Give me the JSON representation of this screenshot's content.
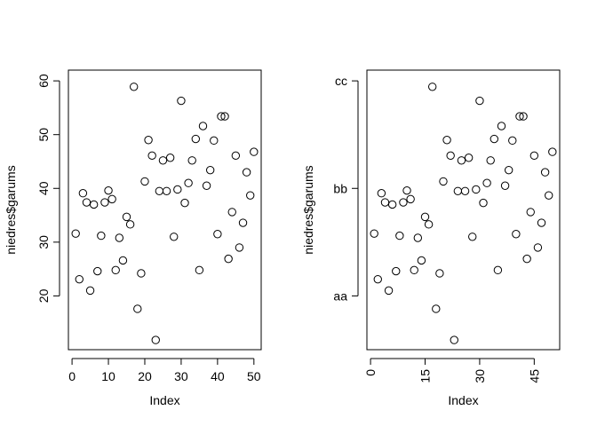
{
  "chart_data": [
    {
      "type": "scatter",
      "title": "",
      "xlabel": "Index",
      "ylabel": "niedres$garums",
      "xlim": [
        -1.0,
        52.0
      ],
      "ylim": [
        10.0,
        62.0
      ],
      "x_ticks": [
        0,
        10,
        20,
        30,
        40,
        50
      ],
      "x_tick_labels": [
        "0",
        "10",
        "20",
        "30",
        "40",
        "50"
      ],
      "y_ticks": [
        20,
        30,
        40,
        50,
        60
      ],
      "y_tick_labels": [
        "20",
        "30",
        "40",
        "50",
        "60"
      ],
      "grid": false,
      "legend": "none",
      "series": [
        {
          "x": [
            1,
            2,
            3,
            4,
            5,
            6,
            7,
            8,
            9,
            10,
            11,
            12,
            13,
            14,
            15,
            16,
            17,
            18,
            19,
            20,
            21,
            22,
            23,
            24,
            25,
            26,
            27,
            28,
            29,
            30,
            31,
            32,
            33,
            34,
            35,
            36,
            37,
            38,
            39,
            40,
            41,
            42,
            43,
            44,
            45,
            46,
            47,
            48,
            49,
            50
          ],
          "y": [
            31.6,
            23.1,
            39.1,
            37.4,
            21.0,
            37.0,
            24.6,
            31.2,
            37.4,
            39.6,
            38.0,
            24.8,
            30.8,
            26.6,
            34.7,
            33.3,
            58.9,
            17.6,
            24.2,
            41.3,
            49.0,
            46.1,
            11.8,
            39.5,
            45.2,
            39.5,
            45.7,
            31.0,
            39.8,
            56.3,
            37.3,
            41.0,
            45.2,
            49.2,
            24.8,
            51.6,
            40.5,
            43.4,
            48.9,
            31.5,
            53.4,
            53.4,
            26.9,
            35.6,
            46.1,
            29.0,
            33.6,
            43.0,
            38.7,
            46.8
          ]
        }
      ]
    },
    {
      "type": "scatter",
      "title": "",
      "xlabel": "Index",
      "ylabel": "niedres$garums",
      "xlim": [
        -1.0,
        52.0
      ],
      "ylim": [
        10.0,
        62.0
      ],
      "x_ticks": [
        0,
        15,
        30,
        45
      ],
      "x_tick_labels": [
        "0",
        "15",
        "30",
        "45"
      ],
      "y_ticks": [
        20,
        40,
        60
      ],
      "y_tick_labels": [
        "aa",
        "bb",
        "cc"
      ],
      "grid": false,
      "legend": "none",
      "series": [
        {
          "x": [
            1,
            2,
            3,
            4,
            5,
            6,
            7,
            8,
            9,
            10,
            11,
            12,
            13,
            14,
            15,
            16,
            17,
            18,
            19,
            20,
            21,
            22,
            23,
            24,
            25,
            26,
            27,
            28,
            29,
            30,
            31,
            32,
            33,
            34,
            35,
            36,
            37,
            38,
            39,
            40,
            41,
            42,
            43,
            44,
            45,
            46,
            47,
            48,
            49,
            50
          ],
          "y": [
            31.6,
            23.1,
            39.1,
            37.4,
            21.0,
            37.0,
            24.6,
            31.2,
            37.4,
            39.6,
            38.0,
            24.8,
            30.8,
            26.6,
            34.7,
            33.3,
            58.9,
            17.6,
            24.2,
            41.3,
            49.0,
            46.1,
            11.8,
            39.5,
            45.2,
            39.5,
            45.7,
            31.0,
            39.8,
            56.3,
            37.3,
            41.0,
            45.2,
            49.2,
            24.8,
            51.6,
            40.5,
            43.4,
            48.9,
            31.5,
            53.4,
            53.4,
            26.9,
            35.6,
            46.1,
            29.0,
            33.6,
            43.0,
            38.7,
            46.8
          ]
        }
      ]
    }
  ]
}
